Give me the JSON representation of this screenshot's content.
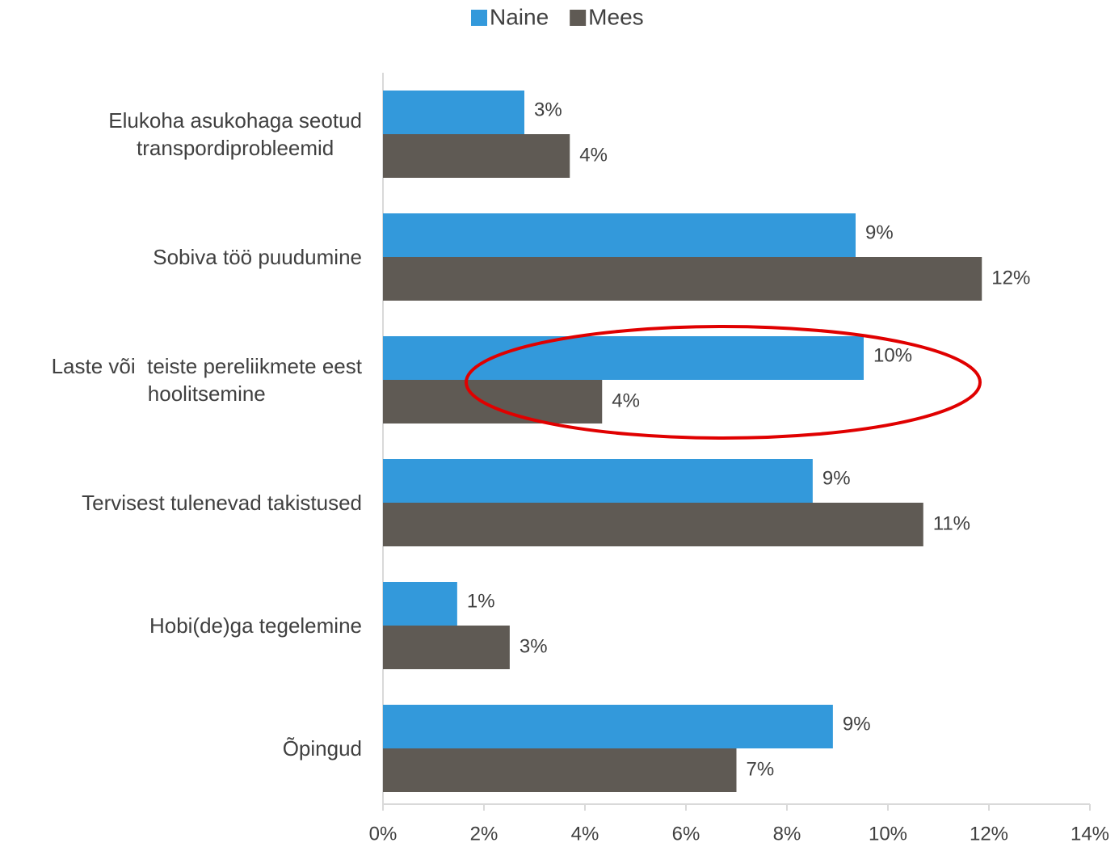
{
  "chart_data": {
    "type": "hbar",
    "categories": [
      "Elukoha asukohaga seotud\ntranspordiprobleemid",
      "Sobiva töö puudumine",
      "Laste või  teiste pereliikmete eest\nhoolitsemine",
      "Tervisest tulenevad takistused",
      "Hobi(de)ga tegelemine",
      "Õpingud"
    ],
    "series": [
      {
        "name": "Naine",
        "color": "#3399db",
        "values": [
          2.8,
          9.36,
          9.52,
          8.51,
          1.47,
          8.91
        ],
        "value_labels": [
          "3%",
          "9%",
          "10%",
          "9%",
          "1%",
          "9%"
        ]
      },
      {
        "name": "Mees",
        "color": "#5f5a54",
        "values": [
          3.7,
          11.86,
          4.34,
          10.7,
          2.51,
          7.0
        ],
        "value_labels": [
          "4%",
          "12%",
          "4%",
          "11%",
          "3%",
          "7%"
        ]
      }
    ],
    "xlim": [
      0,
      14
    ],
    "xticks": [
      {
        "value": 0,
        "label": "0%"
      },
      {
        "value": 2,
        "label": "2%"
      },
      {
        "value": 4,
        "label": "4%"
      },
      {
        "value": 6,
        "label": "6%"
      },
      {
        "value": 8,
        "label": "8%"
      },
      {
        "value": 10,
        "label": "10%"
      },
      {
        "value": 12,
        "label": "12%"
      },
      {
        "value": 14,
        "label": "14%"
      }
    ],
    "legend": "top"
  }
}
